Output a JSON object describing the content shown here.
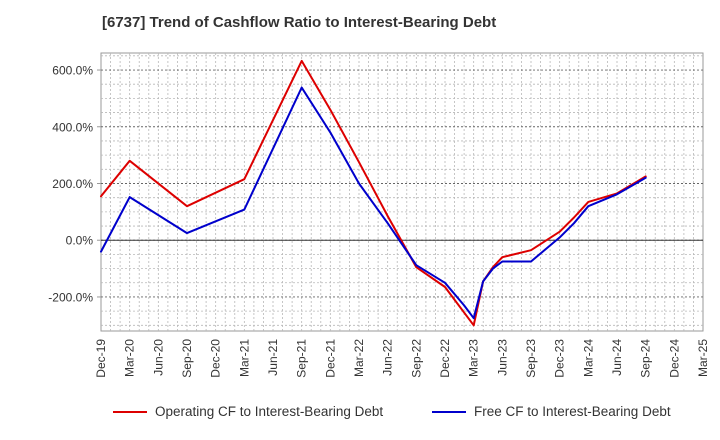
{
  "chart_data": {
    "type": "line",
    "title": "[6737]  Trend of Cashflow Ratio to Interest-Bearing Debt",
    "xlabel": "",
    "ylabel": "",
    "x_tick_labels": [
      "Dec-19",
      "Mar-20",
      "Jun-20",
      "Sep-20",
      "Dec-20",
      "Mar-21",
      "Jun-21",
      "Sep-21",
      "Dec-21",
      "Mar-22",
      "Jun-22",
      "Sep-22",
      "Dec-22",
      "Mar-23",
      "Jun-23",
      "Sep-23",
      "Dec-23",
      "Mar-24",
      "Jun-24",
      "Sep-24",
      "Dec-24",
      "Mar-25"
    ],
    "y_ticks": [
      600,
      400,
      200,
      0,
      -200
    ],
    "y_tick_labels": [
      "600.0%",
      "400.0%",
      "200.0%",
      "0.0%",
      "-200.0%"
    ],
    "ylim": [
      -320,
      660
    ],
    "grid": true,
    "legend_position": "bottom",
    "series": [
      {
        "name": "Operating CF to Interest-Bearing Debt",
        "color": "#dd0000",
        "points": [
          {
            "x": 0,
            "y": 155
          },
          {
            "x": 1,
            "y": 280
          },
          {
            "x": 3,
            "y": 120
          },
          {
            "x": 5,
            "y": 215
          },
          {
            "x": 7,
            "y": 632
          },
          {
            "x": 8,
            "y": 460
          },
          {
            "x": 9,
            "y": 275
          },
          {
            "x": 10,
            "y": 85
          },
          {
            "x": 11,
            "y": -95
          },
          {
            "x": 12,
            "y": -165
          },
          {
            "x": 13,
            "y": -300
          },
          {
            "x": 13.33,
            "y": -145
          },
          {
            "x": 13.67,
            "y": -95
          },
          {
            "x": 14,
            "y": -60
          },
          {
            "x": 15,
            "y": -35
          },
          {
            "x": 16,
            "y": 30
          },
          {
            "x": 16.5,
            "y": 80
          },
          {
            "x": 17,
            "y": 135
          },
          {
            "x": 18,
            "y": 165
          },
          {
            "x": 19,
            "y": 225
          }
        ]
      },
      {
        "name": "Free CF to Interest-Bearing Debt",
        "color": "#0000cc",
        "points": [
          {
            "x": 0,
            "y": -40
          },
          {
            "x": 1,
            "y": 152
          },
          {
            "x": 3,
            "y": 25
          },
          {
            "x": 5,
            "y": 108
          },
          {
            "x": 7,
            "y": 538
          },
          {
            "x": 8,
            "y": 380
          },
          {
            "x": 9,
            "y": 200
          },
          {
            "x": 10,
            "y": 60
          },
          {
            "x": 11,
            "y": -88
          },
          {
            "x": 12,
            "y": -150
          },
          {
            "x": 12.67,
            "y": -230
          },
          {
            "x": 13,
            "y": -275
          },
          {
            "x": 13.33,
            "y": -145
          },
          {
            "x": 13.67,
            "y": -100
          },
          {
            "x": 14,
            "y": -75
          },
          {
            "x": 15,
            "y": -75
          },
          {
            "x": 16,
            "y": 10
          },
          {
            "x": 16.5,
            "y": 60
          },
          {
            "x": 17,
            "y": 120
          },
          {
            "x": 18,
            "y": 162
          },
          {
            "x": 19,
            "y": 220
          }
        ]
      }
    ]
  }
}
